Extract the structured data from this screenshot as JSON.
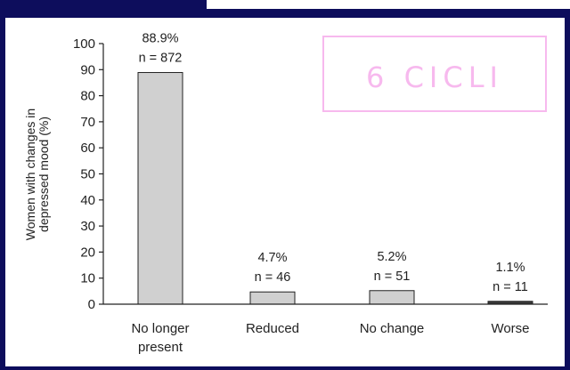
{
  "chart_data": {
    "type": "bar",
    "categories": [
      [
        "No longer",
        "present"
      ],
      [
        "Reduced"
      ],
      [
        "No change"
      ],
      [
        "Worse"
      ]
    ],
    "values": [
      88.9,
      4.7,
      5.2,
      1.1
    ],
    "percent_labels": [
      "88.9%",
      "4.7%",
      "5.2%",
      "1.1%"
    ],
    "n_labels": [
      "n = 872",
      "n = 46",
      "n = 51",
      "n = 11"
    ],
    "ylabel": [
      "Women with changes in",
      "depressed mood (%)"
    ],
    "ylim": [
      0,
      100
    ],
    "yticks": [
      0,
      10,
      20,
      30,
      40,
      50,
      60,
      70,
      80,
      90,
      100
    ],
    "bar_color": "#d0d0d0",
    "bar_color_last": "#3a3a3a"
  },
  "badge": {
    "text": "6 CICLI",
    "color": "#f7b9ee"
  },
  "colors": {
    "background": "#0d0d5c",
    "panel": "#ffffff"
  }
}
